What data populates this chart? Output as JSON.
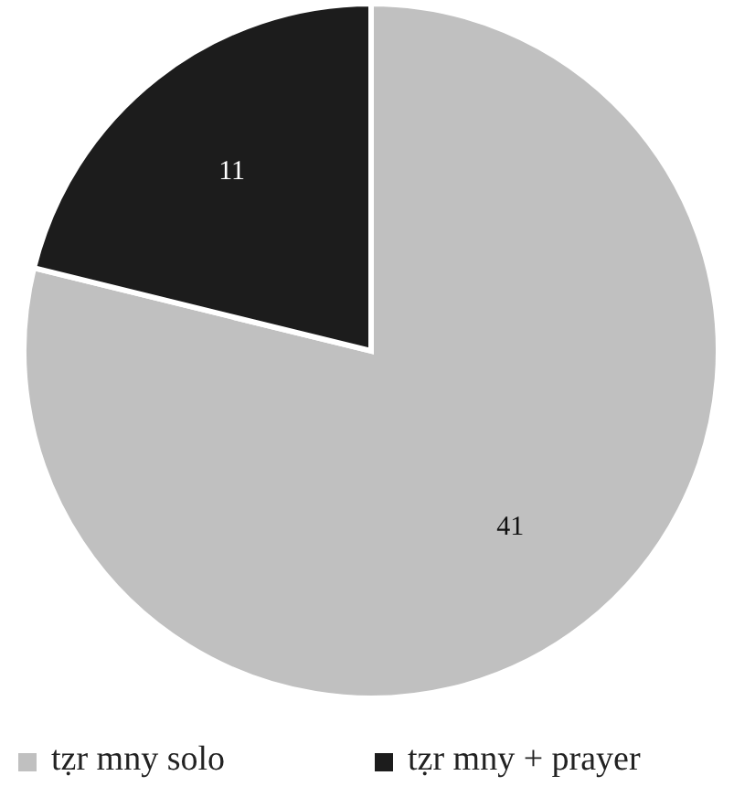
{
  "chart_data": {
    "type": "pie",
    "categories": [
      "tẓr mny solo",
      "tẓr mny + prayer"
    ],
    "values": [
      41,
      11
    ],
    "colors": [
      "#c0c0c0",
      "#1c1c1c"
    ],
    "data_labels": true,
    "legend": "bottom"
  }
}
